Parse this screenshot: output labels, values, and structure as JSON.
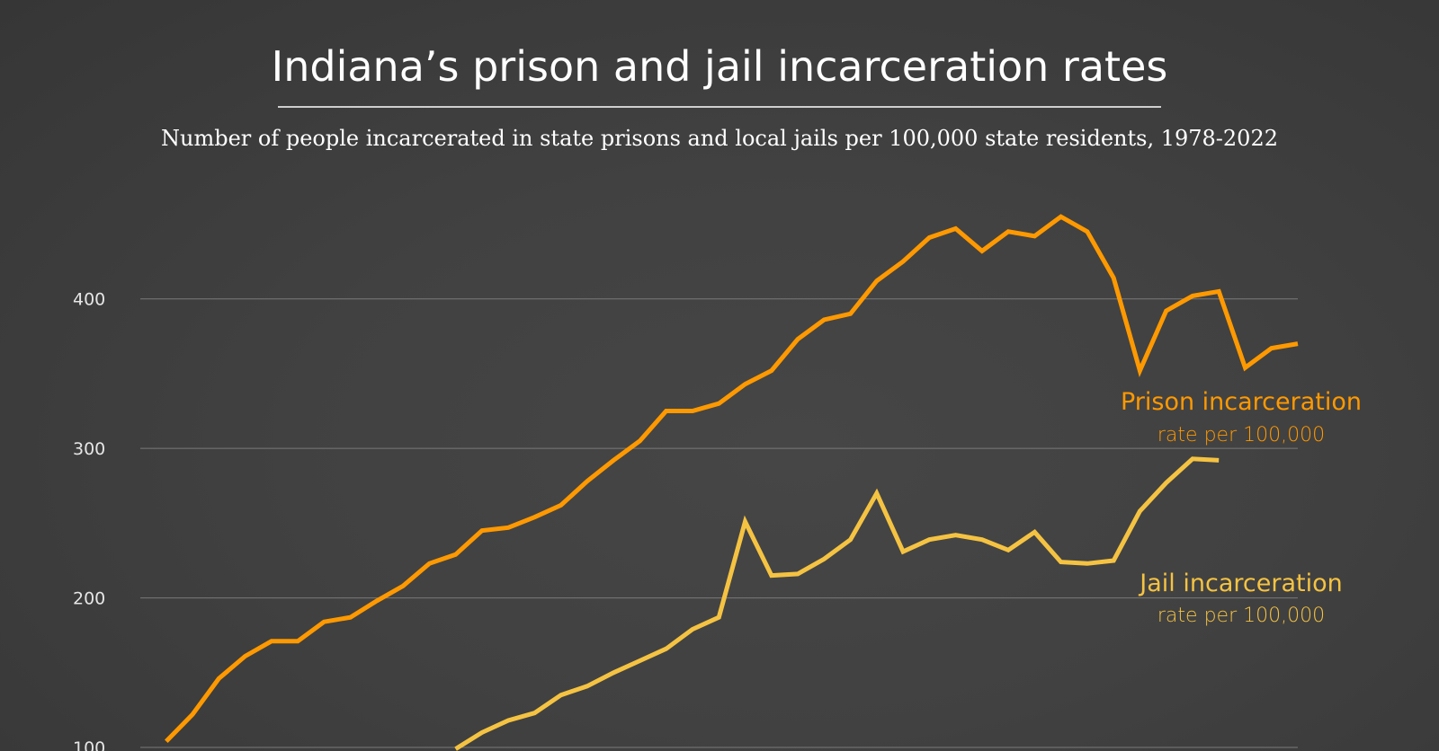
{
  "chart_data": {
    "type": "line",
    "title": "Indiana’s prison and jail incarceration rates",
    "subtitle": "Number of people incarcerated in state prisons and local jails per 100,000 state residents, 1978-2022",
    "xlabel": "",
    "ylabel": "",
    "xlim": [
      1978,
      2022
    ],
    "ylim": [
      100,
      460
    ],
    "yticks": [
      100,
      200,
      300,
      400
    ],
    "ytick_labels": [
      "100",
      "200",
      "300",
      "400"
    ],
    "grid": "horizontal",
    "legend": "inline labels at right",
    "series": [
      {
        "name": "Prison incarceration",
        "label_sub": "rate per 100,000",
        "color": "#ff9900",
        "x": [
          1979,
          1980,
          1981,
          1982,
          1983,
          1984,
          1985,
          1986,
          1987,
          1988,
          1989,
          1990,
          1991,
          1992,
          1993,
          1994,
          1995,
          1996,
          1997,
          1998,
          1999,
          2000,
          2001,
          2002,
          2003,
          2004,
          2005,
          2006,
          2007,
          2008,
          2009,
          2010,
          2011,
          2012,
          2013,
          2014,
          2015,
          2016,
          2017,
          2018,
          2019,
          2020,
          2021,
          2022
        ],
        "values": [
          104,
          122,
          146,
          161,
          171,
          171,
          184,
          187,
          198,
          208,
          223,
          229,
          245,
          247,
          254,
          262,
          278,
          292,
          305,
          325,
          325,
          330,
          343,
          352,
          373,
          386,
          390,
          412,
          425,
          441,
          447,
          432,
          445,
          442,
          455,
          445,
          414,
          352,
          392,
          402,
          405,
          354,
          367,
          370
        ]
      },
      {
        "name": "Jail incarceration",
        "label_sub": "rate per 100,000",
        "color": "#f5c342",
        "x": [
          1990,
          1991,
          1992,
          1993,
          1994,
          1995,
          1996,
          1997,
          1998,
          1999,
          2000,
          2001,
          2002,
          2003,
          2004,
          2005,
          2006,
          2007,
          2008,
          2009,
          2010,
          2011,
          2012,
          2013,
          2014,
          2015,
          2016,
          2017,
          2018,
          2019
        ],
        "values": [
          99,
          110,
          118,
          123,
          135,
          141,
          150,
          158,
          166,
          179,
          187,
          251,
          215,
          216,
          226,
          239,
          270,
          231,
          239,
          242,
          239,
          232,
          244,
          224,
          223,
          225,
          258,
          277,
          293,
          292
        ]
      }
    ]
  }
}
